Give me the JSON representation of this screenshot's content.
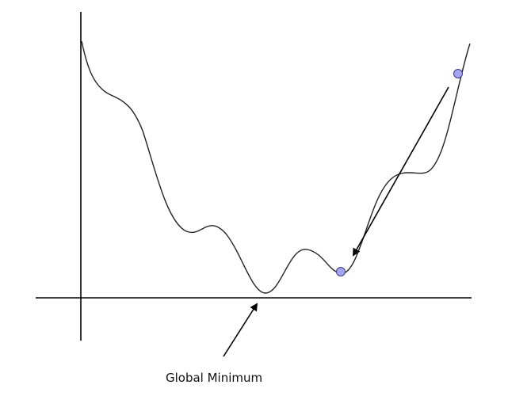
{
  "annotation": {
    "label": "Global Minimum"
  },
  "colors": {
    "curve": "#222222",
    "axes": "#000000",
    "point_fill": "#a3a6ee",
    "point_stroke": "#3a3a8a"
  }
}
